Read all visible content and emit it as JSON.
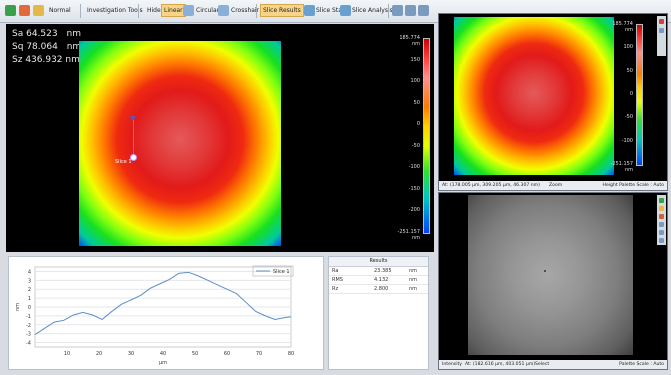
{
  "toolbar": {
    "normal": "Normal",
    "investigation": "Investigation Tools",
    "hide": "Hide",
    "linear": "Linear",
    "circular": "Circular",
    "crosshair": "Crosshair",
    "slice_results": "Slice Results",
    "slice_stats": "Slice Stats",
    "slice_analysis": "Slice Analysis"
  },
  "stats": {
    "sa_label": "Sa",
    "sa_value": "64.523",
    "sa_unit": "nm",
    "sq_label": "Sq",
    "sq_value": "78.064",
    "sq_unit": "nm",
    "sz_label": "Sz",
    "sz_value": "436.932",
    "sz_unit": "nm"
  },
  "main_map": {
    "slice_label": "Slice 1",
    "colorbar_ticks": [
      "185.774 nm",
      "150",
      "100",
      "50",
      "0",
      "-50",
      "-100",
      "-150",
      "-200",
      "-251.157 nm"
    ]
  },
  "profile": {
    "legend": "Slice 1",
    "ylabel": "nm",
    "xlabel": "µm",
    "yticks": [
      "4",
      "3",
      "2",
      "1",
      "0",
      "-1",
      "-2",
      "-3",
      "-4"
    ],
    "xticks": [
      "10",
      "20",
      "30",
      "40",
      "50",
      "60",
      "70",
      "80"
    ]
  },
  "chart_data": {
    "type": "line",
    "series": [
      {
        "name": "Slice 1",
        "x": [
          0,
          3,
          6,
          9,
          12,
          15,
          18,
          21,
          24,
          27,
          30,
          33,
          36,
          39,
          42,
          45,
          48,
          51,
          54,
          57,
          60,
          63,
          66,
          69,
          72,
          75,
          78,
          80
        ],
        "y": [
          -3.1,
          -2.4,
          -1.7,
          -1.5,
          -0.9,
          -0.6,
          -0.9,
          -1.4,
          -0.5,
          0.3,
          0.8,
          1.3,
          2.1,
          2.6,
          3.1,
          3.8,
          3.9,
          3.5,
          3.0,
          2.5,
          2.0,
          1.5,
          0.5,
          -0.5,
          -1.0,
          -1.4,
          -1.2,
          -1.1
        ]
      }
    ],
    "xlim": [
      0,
      80
    ],
    "ylim": [
      -4.5,
      4.5
    ],
    "xlabel": "µm",
    "ylabel": "nm",
    "legend": "top-right",
    "grid": true
  },
  "results": {
    "header": "Results",
    "rows": [
      {
        "name": "Ra",
        "value": "23.385",
        "unit": "nm"
      },
      {
        "name": "RMS",
        "value": "4.132",
        "unit": "nm"
      },
      {
        "name": "Rz",
        "value": "2.800",
        "unit": "nm"
      }
    ]
  },
  "top_right": {
    "colorbar_ticks": [
      "185.774 nm",
      "100",
      "50",
      "0",
      "-50",
      "-100",
      "-251.157 nm"
    ],
    "status_left": "At: (178.005 µm, 309.205 µm, 46.307 nm)",
    "status_mid": "Zoom",
    "status_right": "Height  Palette Scale : Auto"
  },
  "bottom_right": {
    "status_left": "Intensity",
    "status_coords": "At: (182.616 µm, 403.051 µm)",
    "status_mid": "Select",
    "status_right": "Palette Scale : Auto"
  },
  "colors": {
    "background": "#d8dce2",
    "line": "#5c8dc8"
  }
}
